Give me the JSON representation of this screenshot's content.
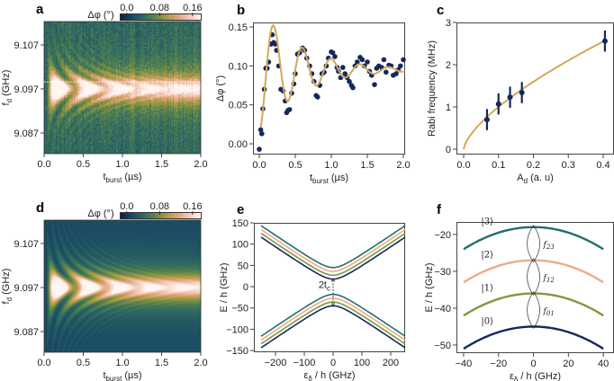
{
  "colors": {
    "navy": "#14285e",
    "olive": "#7d9a3c",
    "peach": "#eea98b",
    "teal": "#236e6a",
    "fit": "#d4a85a",
    "axis": "#444444"
  },
  "colormap": [
    "#0d2150",
    "#1a4a63",
    "#2f6b62",
    "#5f8749",
    "#a99a42",
    "#e0a477",
    "#f6c9b8",
    "#fff6f2"
  ],
  "chart_data": [
    {
      "panel": "a",
      "type": "heatmap",
      "xlabel": {
        "main": "t",
        "sub": "burst",
        "rest": " (µs)"
      },
      "ylabel": {
        "main": "f",
        "sub": "d",
        "rest": " (GHz)"
      },
      "xlim": [
        0,
        2.0
      ],
      "ylim": [
        9.0823,
        9.1123
      ],
      "xticks": [
        0,
        0.5,
        1.0,
        1.5,
        2.0
      ],
      "xtick_labels": [
        "0.0",
        "0.5",
        "1.0",
        "1.5",
        "2.0"
      ],
      "yticks": [
        9.087,
        9.097,
        9.107
      ],
      "ytick_labels": [
        "9.087",
        "9.097",
        "9.107"
      ],
      "colorbar": {
        "label": "Δφ (°)",
        "range": [
          -0.015,
          0.18
        ],
        "ticks": [
          0.0,
          0.08,
          0.16
        ],
        "tick_labels": [
          "0.0",
          "0.08",
          "0.16"
        ]
      },
      "model": {
        "center_GHz": 9.097,
        "rabi_MHz": 2.5,
        "tau_us": 0.6,
        "noise": true
      },
      "marker_line_GHz": 9.0986
    },
    {
      "panel": "b",
      "type": "scatter",
      "xlabel": {
        "main": "t",
        "sub": "burst",
        "rest": " (µs)"
      },
      "ylabel": {
        "main": "Δφ (°)",
        "sub": "",
        "rest": ""
      },
      "xlim": [
        -0.0875,
        2.025
      ],
      "ylim": [
        -0.0138,
        0.1558
      ],
      "xticks": [
        0,
        0.5,
        1.0,
        1.5,
        2.0
      ],
      "xtick_labels": [
        "0.0",
        "0.5",
        "1.0",
        "1.5",
        "2.0"
      ],
      "yticks": [
        0,
        0.05,
        0.1,
        0.15
      ],
      "ytick_labels": [
        "0.00",
        "0.05",
        "0.10",
        "0.15"
      ],
      "points": [
        [
          0,
          -0.007
        ],
        [
          0.02,
          0.018
        ],
        [
          0.035,
          0.013
        ],
        [
          0.05,
          0.045
        ],
        [
          0.07,
          0.07
        ],
        [
          0.09,
          0.097
        ],
        [
          0.11,
          0.097
        ],
        [
          0.13,
          0.105
        ],
        [
          0.16,
          0.128
        ],
        [
          0.18,
          0.14
        ],
        [
          0.2,
          0.13
        ],
        [
          0.22,
          0.128
        ],
        [
          0.24,
          0.12
        ],
        [
          0.27,
          0.1
        ],
        [
          0.3,
          0.07
        ],
        [
          0.33,
          0.068
        ],
        [
          0.36,
          0.055
        ],
        [
          0.38,
          0.04
        ],
        [
          0.4,
          0.043
        ],
        [
          0.42,
          0.044
        ],
        [
          0.45,
          0.065
        ],
        [
          0.48,
          0.077
        ],
        [
          0.5,
          0.09
        ],
        [
          0.53,
          0.115
        ],
        [
          0.56,
          0.117
        ],
        [
          0.6,
          0.123
        ],
        [
          0.63,
          0.12
        ],
        [
          0.66,
          0.11
        ],
        [
          0.7,
          0.1
        ],
        [
          0.73,
          0.09
        ],
        [
          0.76,
          0.08
        ],
        [
          0.79,
          0.062
        ],
        [
          0.81,
          0.06
        ],
        [
          0.84,
          0.075
        ],
        [
          0.87,
          0.09
        ],
        [
          0.9,
          0.092
        ],
        [
          0.93,
          0.1
        ],
        [
          0.96,
          0.11
        ],
        [
          1.0,
          0.118
        ],
        [
          1.02,
          0.117
        ],
        [
          1.05,
          0.112
        ],
        [
          1.08,
          0.098
        ],
        [
          1.1,
          0.093
        ],
        [
          1.13,
          0.085
        ],
        [
          1.16,
          0.098
        ],
        [
          1.19,
          0.09
        ],
        [
          1.22,
          0.085
        ],
        [
          1.25,
          0.08
        ],
        [
          1.28,
          0.075
        ],
        [
          1.3,
          0.072
        ],
        [
          1.33,
          0.1
        ],
        [
          1.36,
          0.105
        ],
        [
          1.4,
          0.111
        ],
        [
          1.43,
          0.108
        ],
        [
          1.46,
          0.1
        ],
        [
          1.5,
          0.105
        ],
        [
          1.53,
          0.093
        ],
        [
          1.56,
          0.088
        ],
        [
          1.6,
          0.076
        ],
        [
          1.63,
          0.097
        ],
        [
          1.66,
          0.1
        ],
        [
          1.7,
          0.098
        ],
        [
          1.73,
          0.108
        ],
        [
          1.76,
          0.092
        ],
        [
          1.8,
          0.101
        ],
        [
          1.83,
          0.1
        ],
        [
          1.86,
          0.088
        ],
        [
          1.9,
          0.09
        ],
        [
          1.93,
          0.095
        ],
        [
          1.96,
          0.1
        ],
        [
          2.0,
          0.108
        ]
      ],
      "fit": {
        "baseline": 0.095,
        "amplitude": 0.08,
        "freq_MHz": 2.5,
        "tau_us": 0.58,
        "t_range": [
          0.02,
          2.0
        ]
      }
    },
    {
      "panel": "c",
      "type": "scatter",
      "xlabel": {
        "main": "A",
        "sub": "d",
        "rest": " (a. u)"
      },
      "ylabel": {
        "main": "Rabi frequency (MHz)",
        "sub": "",
        "rest": ""
      },
      "xlim": [
        -0.0206,
        0.431
      ],
      "ylim": [
        -0.128,
        3.0
      ],
      "xticks": [
        0,
        0.1,
        0.2,
        0.3,
        0.4
      ],
      "xtick_labels": [
        "0.0",
        "0.1",
        "0.2",
        "0.3",
        "0.4"
      ],
      "yticks": [
        0,
        1,
        2,
        3
      ],
      "ytick_labels": [
        "0",
        "1",
        "2",
        "3"
      ],
      "points": [
        [
          0.067,
          0.7,
          0.25
        ],
        [
          0.1,
          1.07,
          0.25
        ],
        [
          0.133,
          1.23,
          0.25
        ],
        [
          0.167,
          1.34,
          0.25
        ],
        [
          0.405,
          2.56,
          0.25
        ]
      ],
      "fit": {
        "prefactor": 4.73,
        "exponent": 0.675,
        "x_range": [
          0,
          0.4
        ]
      }
    },
    {
      "panel": "d",
      "type": "heatmap",
      "xlabel": {
        "main": "t",
        "sub": "burst",
        "rest": " (µs)"
      },
      "ylabel": {
        "main": "f",
        "sub": "d",
        "rest": " (GHz)"
      },
      "xlim": [
        0,
        2.0
      ],
      "ylim": [
        9.0823,
        9.1123
      ],
      "xticks": [
        0,
        0.5,
        1.0,
        1.5,
        2.0
      ],
      "xtick_labels": [
        "0.0",
        "0.5",
        "1.0",
        "1.5",
        "2.0"
      ],
      "yticks": [
        9.087,
        9.097,
        9.107
      ],
      "ytick_labels": [
        "9.087",
        "9.097",
        "9.107"
      ],
      "colorbar": {
        "label": "Δφ (°)",
        "range": [
          -0.015,
          0.18
        ],
        "ticks": [
          0.0,
          0.08,
          0.16
        ],
        "tick_labels": [
          "0.0",
          "0.08",
          "0.16"
        ]
      },
      "model": {
        "center_GHz": 9.097,
        "rabi_MHz": 2.5,
        "tau_us": 0.6,
        "noise": false
      }
    },
    {
      "panel": "e",
      "type": "line",
      "xlabel": {
        "main": "ε",
        "sub": "δ",
        "rest": " / h (GHz)"
      },
      "ylabel": {
        "main": "E / h (GHz)",
        "sub": "",
        "rest": ""
      },
      "xlim": [
        -275,
        250
      ],
      "ylim": [
        -154,
        150
      ],
      "xticks": [
        -200,
        -100,
        0,
        100,
        200
      ],
      "xtick_labels": [
        "−200",
        "−100",
        "0",
        "100",
        "200"
      ],
      "yticks": [
        -150,
        -100,
        -50,
        0,
        50,
        100,
        150
      ],
      "ytick_labels": [
        "−150",
        "−100",
        "−50",
        "0",
        "50",
        "100",
        "150"
      ],
      "model": {
        "slope": 0.46,
        "half_gap": 18,
        "level_offsets": [
          0,
          9,
          18,
          27
        ],
        "x_range": [
          -250,
          250
        ]
      },
      "annotation": "2t",
      "annotation_sub": "c"
    },
    {
      "panel": "f",
      "type": "line",
      "xlabel": {
        "main": "ε",
        "sub": "δ",
        "rest": " / h (GHz)"
      },
      "ylabel": {
        "main": "E / h (GHz)",
        "sub": "",
        "rest": ""
      },
      "xlim": [
        -44.1,
        46.1
      ],
      "ylim": [
        -52.2,
        -16.6
      ],
      "xticks": [
        -40,
        -20,
        0,
        20,
        40
      ],
      "xtick_labels": [
        "−40",
        "−20",
        "0",
        "20",
        "40"
      ],
      "yticks": [
        -50,
        -40,
        -30,
        -20
      ],
      "ytick_labels": [
        "−50",
        "−40",
        "−30",
        "−20"
      ],
      "levels": [
        {
          "label": "|0⟩",
          "top": -45
        },
        {
          "label": "|1⟩",
          "top": -36
        },
        {
          "label": "|2⟩",
          "top": -27
        },
        {
          "label": "|3⟩",
          "top": -18
        }
      ],
      "curvature": 0.00375,
      "x_range": [
        -40,
        40
      ],
      "transitions": [
        {
          "main": "f",
          "sub": "01"
        },
        {
          "main": "f",
          "sub": "12"
        },
        {
          "main": "f",
          "sub": "23"
        }
      ]
    }
  ]
}
